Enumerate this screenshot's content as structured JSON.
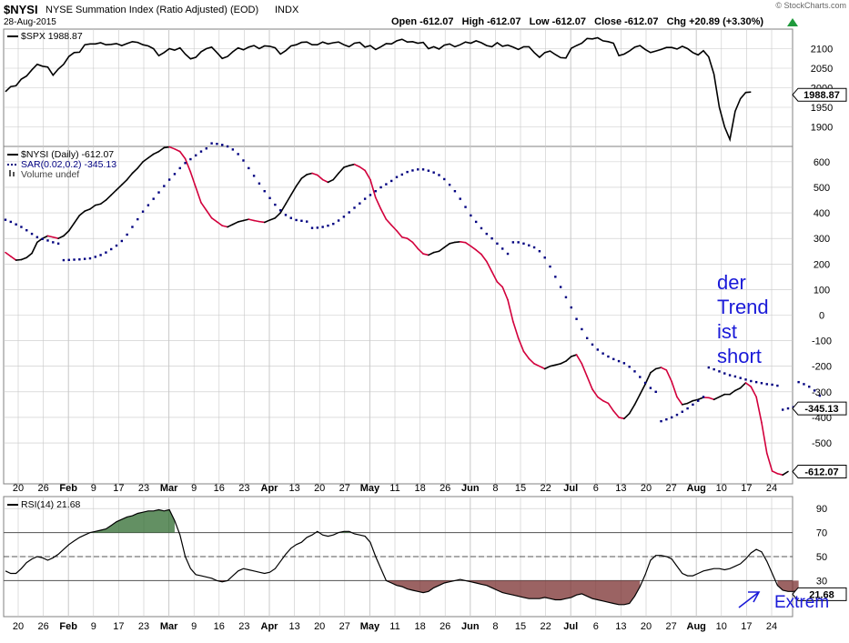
{
  "header": {
    "symbol": "$NYSI",
    "description": "NYSE Summation Index (Ratio Adjusted) (EOD)",
    "exchange": "INDX",
    "date": "28-Aug-2015",
    "brand": "© StockCharts.com",
    "quote": "Open -612.07   High -612.07   Low -612.07   Close -612.07   Chg +20.89 (+3.30%)"
  },
  "chart_data": [
    {
      "type": "line",
      "panel": "price-overlay",
      "legend": [
        "$SPX 1988.87"
      ],
      "ylim": [
        1850,
        2150
      ],
      "yticks": [
        1900,
        1950,
        2000,
        2050,
        2100
      ],
      "last_value_label": "1988.87",
      "series": [
        {
          "name": "$SPX",
          "color": "#000000",
          "values": [
            1990,
            2003,
            2005,
            2022,
            2030,
            2046,
            2060,
            2055,
            2053,
            2032,
            2048,
            2060,
            2080,
            2090,
            2091,
            2110,
            2112,
            2112,
            2115,
            2110,
            2111,
            2113,
            2108,
            2113,
            2118,
            2116,
            2110,
            2107,
            2100,
            2082,
            2090,
            2100,
            2096,
            2102,
            2086,
            2074,
            2078,
            2092,
            2100,
            2104,
            2090,
            2075,
            2080,
            2092,
            2102,
            2097,
            2104,
            2108,
            2100,
            2107,
            2106,
            2102,
            2086,
            2095,
            2107,
            2110,
            2116,
            2117,
            2110,
            2110,
            2117,
            2112,
            2115,
            2117,
            2110,
            2105,
            2114,
            2116,
            2104,
            2108,
            2098,
            2105,
            2113,
            2112,
            2120,
            2124,
            2117,
            2118,
            2114,
            2116,
            2100,
            2105,
            2099,
            2109,
            2112,
            2105,
            2110,
            2117,
            2114,
            2120,
            2115,
            2108,
            2105,
            2115,
            2106,
            2109,
            2104,
            2098,
            2105,
            2105,
            2090,
            2078,
            2090,
            2094,
            2085,
            2077,
            2076,
            2101,
            2108,
            2114,
            2126,
            2125,
            2128,
            2120,
            2118,
            2114,
            2082,
            2086,
            2094,
            2104,
            2108,
            2098,
            2090,
            2094,
            2098,
            2103,
            2103,
            2099,
            2106,
            2100,
            2090,
            2084,
            2095,
            2079,
            2035,
            1950,
            1900,
            1868,
            1940,
            1972,
            1988,
            1989
          ]
        }
      ]
    },
    {
      "type": "line",
      "panel": "main",
      "legend": [
        "$NYSI (Daily) -612.07",
        "SAR(0.02,0.2) -345.13",
        "Volume undef"
      ],
      "ylim": [
        -660,
        660
      ],
      "yticks": [
        600,
        500,
        400,
        300,
        200,
        100,
        0,
        -100,
        -200,
        -300,
        -400,
        -500
      ],
      "last_value_labels": [
        "-345.13",
        "-612.07"
      ],
      "x_tick_labels": [
        "20",
        "26",
        "Feb",
        "9",
        "17",
        "23",
        "Mar",
        "9",
        "16",
        "23",
        "Apr",
        "13",
        "20",
        "27",
        "May",
        "11",
        "18",
        "26",
        "Jun",
        "8",
        "15",
        "22",
        "Jul",
        "6",
        "13",
        "20",
        "27",
        "Aug",
        "10",
        "17",
        "24"
      ],
      "series": [
        {
          "name": "$NYSI (Daily)",
          "color": "#000000",
          "down_color": "#d2003c",
          "values": [
            245,
            230,
            215,
            217,
            225,
            242,
            285,
            300,
            310,
            305,
            300,
            310,
            330,
            360,
            390,
            407,
            415,
            430,
            435,
            450,
            470,
            490,
            510,
            530,
            555,
            575,
            600,
            615,
            630,
            640,
            655,
            658,
            650,
            640,
            612,
            560,
            500,
            440,
            410,
            380,
            365,
            350,
            345,
            355,
            365,
            370,
            375,
            370,
            366,
            363,
            372,
            380,
            400,
            435,
            470,
            505,
            535,
            550,
            555,
            548,
            530,
            520,
            530,
            555,
            578,
            585,
            590,
            580,
            566,
            530,
            460,
            415,
            375,
            352,
            330,
            305,
            300,
            285,
            260,
            240,
            235,
            245,
            250,
            265,
            280,
            285,
            287,
            284,
            270,
            255,
            238,
            210,
            170,
            130,
            110,
            60,
            -25,
            -90,
            -142,
            -170,
            -190,
            -200,
            -210,
            -200,
            -195,
            -190,
            -180,
            -162,
            -155,
            -190,
            -240,
            -290,
            -320,
            -335,
            -345,
            -375,
            -400,
            -405,
            -385,
            -350,
            -310,
            -270,
            -225,
            -210,
            -205,
            -215,
            -260,
            -320,
            -350,
            -345,
            -335,
            -330,
            -322,
            -323,
            -330,
            -320,
            -310,
            -310,
            -295,
            -285,
            -265,
            -280,
            -320,
            -420,
            -540,
            -610,
            -620,
            -625,
            -612
          ]
        },
        {
          "name": "SAR(0.02,0.2)",
          "color": "#000080",
          "style": "dots",
          "values": [
            373,
            365,
            355,
            345,
            332,
            318,
            305,
            298,
            292,
            285,
            280,
            215,
            216,
            217,
            218,
            220,
            222,
            228,
            235,
            245,
            258,
            272,
            290,
            315,
            345,
            375,
            405,
            430,
            455,
            480,
            505,
            530,
            552,
            575,
            595,
            610,
            625,
            640,
            652,
            672,
            670,
            666,
            660,
            648,
            630,
            605,
            575,
            545,
            515,
            485,
            458,
            432,
            410,
            392,
            380,
            372,
            369,
            366,
            341,
            342,
            345,
            350,
            357,
            370,
            385,
            402,
            420,
            437,
            455,
            470,
            485,
            500,
            512,
            525,
            540,
            550,
            560,
            566,
            570,
            570,
            565,
            558,
            548,
            532,
            510,
            485,
            455,
            423,
            390,
            365,
            340,
            318,
            300,
            280,
            260,
            240,
            285,
            285,
            280,
            273,
            265,
            250,
            225,
            190,
            150,
            110,
            70,
            30,
            -15,
            -55,
            -90,
            -115,
            -135,
            -150,
            -162,
            -172,
            -180,
            -188,
            -202,
            -220,
            -242,
            -265,
            -285,
            -300,
            -415,
            -408,
            -400,
            -390,
            -378,
            -365,
            -350,
            -335,
            -320,
            -205,
            -212,
            -220,
            -228,
            -235,
            -240,
            -246,
            -252,
            -258,
            -262,
            -266,
            -270,
            -272,
            -276,
            -370,
            -365,
            -360,
            -262,
            -270,
            -280,
            -295,
            -315,
            -345
          ]
        }
      ]
    },
    {
      "type": "line",
      "panel": "indicator",
      "legend": [
        "RSI(14) 21.68"
      ],
      "ylim": [
        0,
        100
      ],
      "yticks": [
        90,
        70,
        50,
        30
      ],
      "overbought": 70,
      "oversold": 30,
      "last_value_label": "21.68",
      "series": [
        {
          "name": "RSI(14)",
          "color": "#000000",
          "overbought_fill": "#2f6b2f",
          "oversold_fill": "#7a2f2f",
          "values": [
            38,
            36,
            36,
            40,
            45,
            48,
            50,
            49,
            47,
            49,
            52,
            56,
            60,
            63,
            66,
            68,
            70,
            71,
            72,
            73,
            76,
            79,
            81,
            83,
            84,
            86,
            87,
            88,
            88,
            89,
            88,
            89,
            80,
            68,
            50,
            40,
            35,
            34,
            33,
            32,
            30,
            29,
            30,
            34,
            38,
            40,
            39,
            38,
            37,
            36,
            37,
            40,
            46,
            52,
            57,
            60,
            62,
            66,
            68,
            71,
            68,
            67,
            68,
            70,
            71,
            71,
            69,
            68,
            67,
            62,
            50,
            40,
            30,
            28,
            26,
            25,
            23,
            22,
            21,
            20,
            21,
            24,
            26,
            28,
            29,
            30,
            31,
            30,
            29,
            28,
            27,
            26,
            24,
            22,
            20,
            19,
            18,
            17,
            16,
            15,
            15,
            15,
            16,
            15,
            14,
            14,
            15,
            16,
            18,
            19,
            17,
            15,
            14,
            13,
            12,
            11,
            10,
            10,
            11,
            17,
            25,
            35,
            47,
            51,
            51,
            50,
            48,
            42,
            36,
            34,
            34,
            36,
            38,
            39,
            40,
            40,
            39,
            40,
            42,
            44,
            48,
            53,
            56,
            54,
            46,
            36,
            26,
            22,
            21,
            21,
            21.7
          ]
        }
      ]
    }
  ],
  "annotations": {
    "trend_line1": "der",
    "trend_line2": "Trend",
    "trend_line3": "ist",
    "trend_line4": "short",
    "extrem": "Extrem"
  },
  "colors": {
    "annotation": "#1a1ad8",
    "grid": "#c8c8c8",
    "frame": "#808080",
    "up_arrow": "#1f9a3c"
  }
}
